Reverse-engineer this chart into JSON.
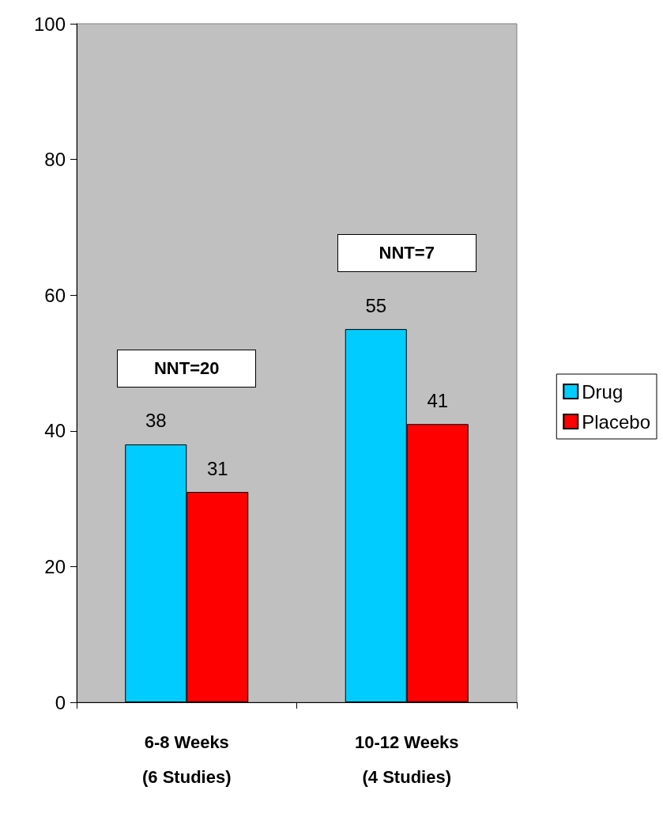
{
  "chart_data": {
    "type": "bar",
    "categories": [
      "6-8 Weeks\n(6 Studies)",
      "10-12 Weeks\n(4 Studies)"
    ],
    "series": [
      {
        "name": "Drug",
        "color": "#00ccff",
        "values": [
          38,
          55
        ]
      },
      {
        "name": "Placebo",
        "color": "#ff0000",
        "values": [
          31,
          41
        ]
      }
    ],
    "ylim": [
      0,
      100
    ],
    "yticks": [
      0,
      20,
      40,
      60,
      80,
      100
    ],
    "data_labels": true,
    "grid": false,
    "legend": "right",
    "annotations": [
      "NNT=20",
      "NNT=7"
    ]
  }
}
